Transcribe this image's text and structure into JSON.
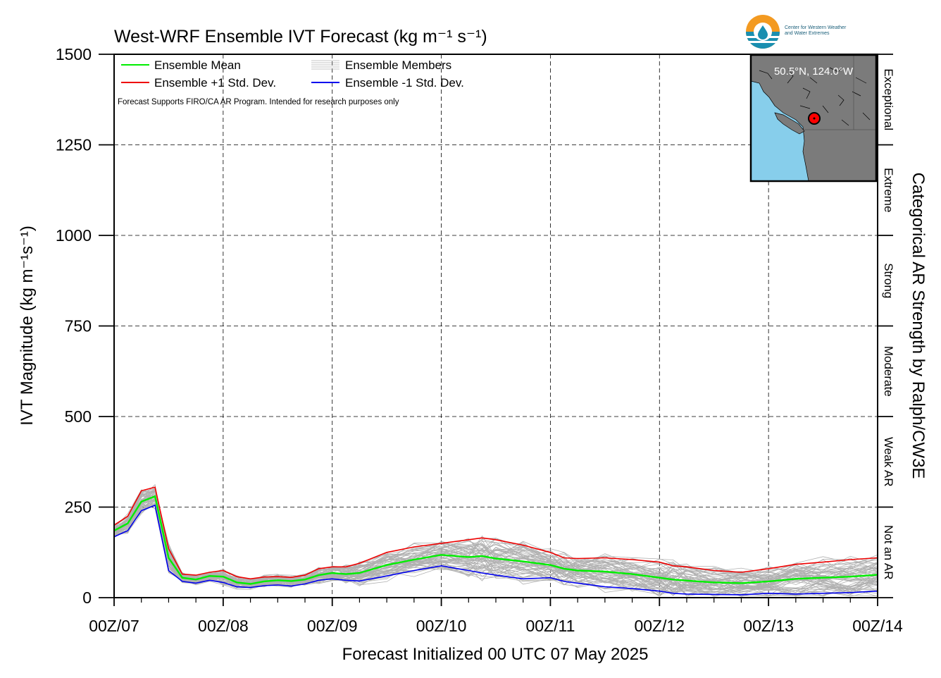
{
  "chart_data": {
    "type": "line",
    "title": "West-WRF Ensemble IVT Forecast (kg m⁻¹ s⁻¹)",
    "xlabel": "Forecast Initialized 00 UTC 07 May 2025",
    "ylabel": "IVT Magnitude (kg m⁻¹s⁻¹)",
    "right_label": "Categorical AR Strength by Ralph/CW3E",
    "x_unit": "days since 00Z/07",
    "xlim": [
      0,
      7
    ],
    "ylim": [
      0,
      1500
    ],
    "x_ticks": [
      {
        "x": 0,
        "label": "00Z/07"
      },
      {
        "x": 1,
        "label": "00Z/08"
      },
      {
        "x": 2,
        "label": "00Z/09"
      },
      {
        "x": 3,
        "label": "00Z/10"
      },
      {
        "x": 4,
        "label": "00Z/11"
      },
      {
        "x": 5,
        "label": "00Z/12"
      },
      {
        "x": 6,
        "label": "00Z/13"
      },
      {
        "x": 7,
        "label": "00Z/14"
      }
    ],
    "y_ticks": [
      0,
      250,
      500,
      750,
      1000,
      1250,
      1500
    ],
    "grid": true,
    "legend_placement": "top-left",
    "note": "Forecast Supports FIRO/CA AR Program. Intended for research purposes only",
    "categories": [
      {
        "label": "Not an AR",
        "from": 0,
        "to": 250
      },
      {
        "label": "Weak AR",
        "from": 250,
        "to": 500
      },
      {
        "label": "Moderate",
        "from": 500,
        "to": 750
      },
      {
        "label": "Strong",
        "from": 750,
        "to": 1000
      },
      {
        "label": "Extreme",
        "from": 1000,
        "to": 1250
      },
      {
        "label": "Exceptional",
        "from": 1250,
        "to": 1500
      }
    ],
    "series": [
      {
        "name": "Ensemble Mean",
        "color": "#00ee00",
        "x": [
          0,
          0.125,
          0.25,
          0.375,
          0.5,
          0.625,
          0.75,
          0.875,
          1,
          1.125,
          1.25,
          1.375,
          1.5,
          1.625,
          1.75,
          1.875,
          2,
          2.125,
          2.25,
          2.5,
          2.75,
          3,
          3.25,
          3.375,
          3.5,
          3.75,
          4,
          4.125,
          4.25,
          4.5,
          4.75,
          5,
          5.125,
          5.25,
          5.5,
          5.75,
          6,
          6.25,
          6.5,
          6.75,
          7
        ],
        "values": [
          185,
          205,
          265,
          280,
          110,
          55,
          50,
          60,
          58,
          42,
          38,
          45,
          48,
          46,
          50,
          62,
          68,
          65,
          68,
          90,
          105,
          118,
          112,
          115,
          108,
          100,
          90,
          80,
          75,
          72,
          65,
          55,
          50,
          47,
          42,
          40,
          45,
          52,
          55,
          58,
          63
        ]
      },
      {
        "name": "Ensemble +1 Std. Dev.",
        "color": "#ee0000",
        "x": [
          0,
          0.125,
          0.25,
          0.375,
          0.5,
          0.625,
          0.75,
          0.875,
          1,
          1.125,
          1.25,
          1.375,
          1.5,
          1.625,
          1.75,
          1.875,
          2,
          2.125,
          2.25,
          2.5,
          2.75,
          3,
          3.25,
          3.375,
          3.5,
          3.75,
          4,
          4.125,
          4.25,
          4.5,
          4.75,
          5,
          5.125,
          5.25,
          5.5,
          5.75,
          6,
          6.25,
          6.5,
          6.75,
          7
        ],
        "values": [
          200,
          225,
          295,
          305,
          135,
          65,
          62,
          70,
          75,
          58,
          52,
          57,
          58,
          56,
          62,
          80,
          85,
          85,
          95,
          125,
          140,
          150,
          160,
          165,
          160,
          145,
          125,
          110,
          108,
          110,
          105,
          98,
          88,
          85,
          75,
          70,
          80,
          92,
          98,
          105,
          110
        ]
      },
      {
        "name": "Ensemble -1 Std. Dev.",
        "color": "#0000ee",
        "x": [
          0,
          0.125,
          0.25,
          0.375,
          0.5,
          0.625,
          0.75,
          0.875,
          1,
          1.125,
          1.25,
          1.375,
          1.5,
          1.625,
          1.75,
          1.875,
          2,
          2.125,
          2.25,
          2.5,
          2.75,
          3,
          3.25,
          3.375,
          3.5,
          3.75,
          4,
          4.125,
          4.25,
          4.5,
          4.75,
          5,
          5.125,
          5.25,
          5.5,
          5.75,
          6,
          6.25,
          6.5,
          6.75,
          7
        ],
        "values": [
          168,
          185,
          240,
          255,
          75,
          45,
          40,
          48,
          42,
          30,
          28,
          33,
          35,
          32,
          38,
          48,
          52,
          48,
          46,
          60,
          75,
          88,
          75,
          68,
          62,
          52,
          55,
          45,
          40,
          30,
          25,
          18,
          12,
          10,
          9,
          8,
          12,
          10,
          12,
          14,
          18
        ]
      }
    ],
    "members_name": "Ensemble Members",
    "members_color": "#b0b0b0",
    "members_count": 60
  },
  "inset_map": {
    "label": "50.5°N, 124.0°W",
    "point_lat": 50.5,
    "point_lon": -124.0
  },
  "logo": {
    "line1": "Center for Western Weather",
    "line2": "and Water Extremes"
  }
}
